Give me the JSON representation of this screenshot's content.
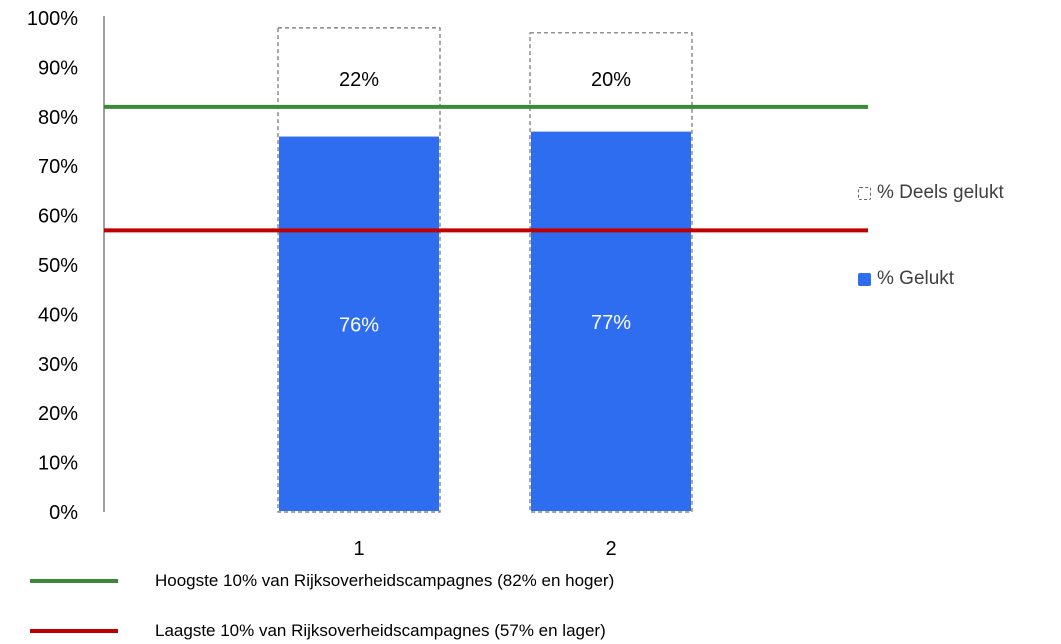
{
  "chart_data": {
    "type": "bar",
    "stacked": true,
    "categories": [
      "1",
      "2"
    ],
    "ylim": [
      0,
      100
    ],
    "yticks": [
      "0%",
      "10%",
      "20%",
      "30%",
      "40%",
      "50%",
      "60%",
      "70%",
      "80%",
      "90%",
      "100%"
    ],
    "series": [
      {
        "name": "% Gelukt",
        "values": [
          76,
          77
        ],
        "labels": [
          "76%",
          "77%"
        ],
        "color": "#2f6df0",
        "style": "solid"
      },
      {
        "name": "% Deels gelukt",
        "values": [
          22,
          20
        ],
        "labels": [
          "22%",
          "20%"
        ],
        "color": "#ffffff",
        "style": "dashed-outline"
      }
    ],
    "reference_lines": [
      {
        "label": "Hoogste 10% van Rijksoverheidscampagnes (82% en hoger)",
        "value": 82,
        "color": "#3a8a3a"
      },
      {
        "label": "Laagste 10% van Rijksoverheidscampagnes (57% en lager)",
        "value": 57,
        "color": "#c00000"
      }
    ],
    "legend_placement": "right",
    "grid": false
  }
}
